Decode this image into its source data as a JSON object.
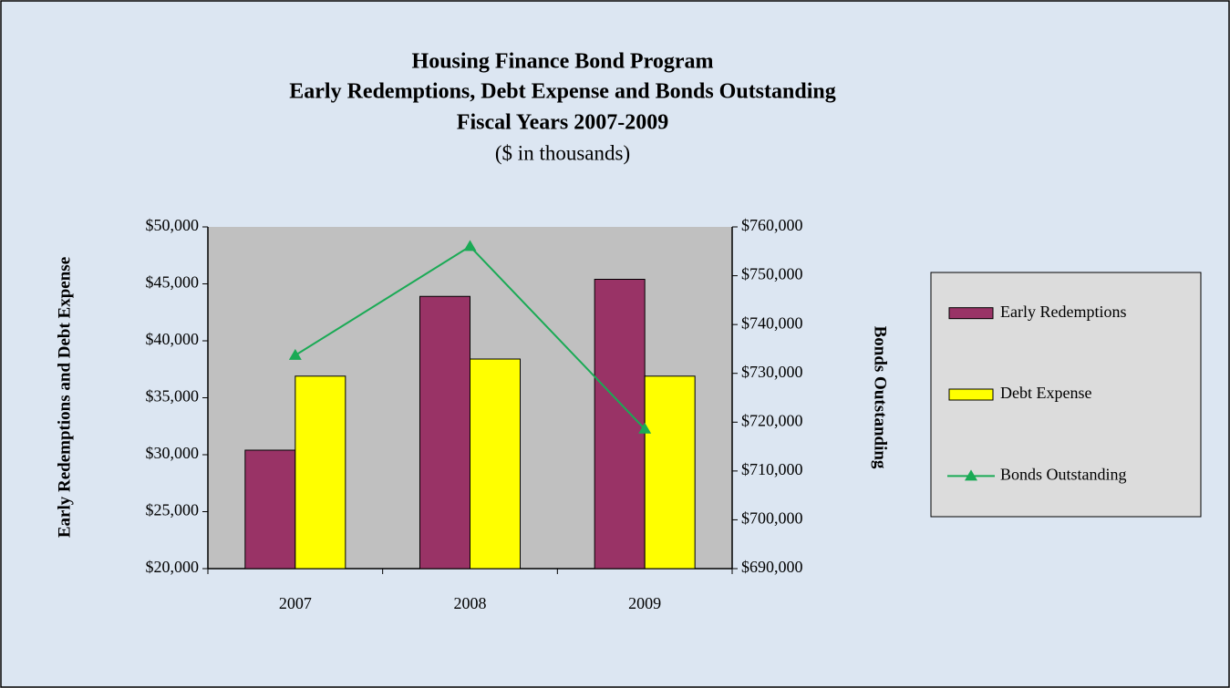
{
  "chart_data": {
    "type": "bar-line",
    "title": [
      "Housing Finance Bond Program",
      "Early Redemptions, Debt Expense and Bonds Outstanding",
      "Fiscal Years 2007-2009"
    ],
    "subtitle": "($ in thousands)",
    "ylabel": "Early Redemptions and Debt  Expense",
    "y2label": "Bonds Outstanding",
    "categories": [
      "2007",
      "2008",
      "2009"
    ],
    "series": [
      {
        "name": "Early Redemptions",
        "type": "bar",
        "color": "#993366",
        "values": [
          30400,
          43900,
          45400
        ]
      },
      {
        "name": "Debt Expense",
        "type": "bar",
        "color": "#ffff00",
        "values": [
          36900,
          38400,
          36900
        ]
      },
      {
        "name": "Bonds Outstanding",
        "type": "line",
        "axis": "y2",
        "color": "#1aaa55",
        "values": [
          733700,
          756000,
          718600
        ]
      }
    ],
    "ylim": [
      20000,
      50000
    ],
    "yticks": [
      {
        "value": 20000,
        "label": "$20,000"
      },
      {
        "value": 25000,
        "label": "$25,000"
      },
      {
        "value": 30000,
        "label": "$30,000"
      },
      {
        "value": 35000,
        "label": "$35,000"
      },
      {
        "value": 40000,
        "label": "$40,000"
      },
      {
        "value": 45000,
        "label": "$45,000"
      },
      {
        "value": 50000,
        "label": "$50,000"
      }
    ],
    "y2lim": [
      690000,
      760000
    ],
    "y2ticks": [
      {
        "value": 690000,
        "label": "$690,000"
      },
      {
        "value": 700000,
        "label": "$700,000"
      },
      {
        "value": 710000,
        "label": "$710,000"
      },
      {
        "value": 720000,
        "label": "$720,000"
      },
      {
        "value": 730000,
        "label": "$730,000"
      },
      {
        "value": 740000,
        "label": "$740,000"
      },
      {
        "value": 750000,
        "label": "$750,000"
      },
      {
        "value": 760000,
        "label": "$760,000"
      }
    ],
    "legend": "right"
  }
}
